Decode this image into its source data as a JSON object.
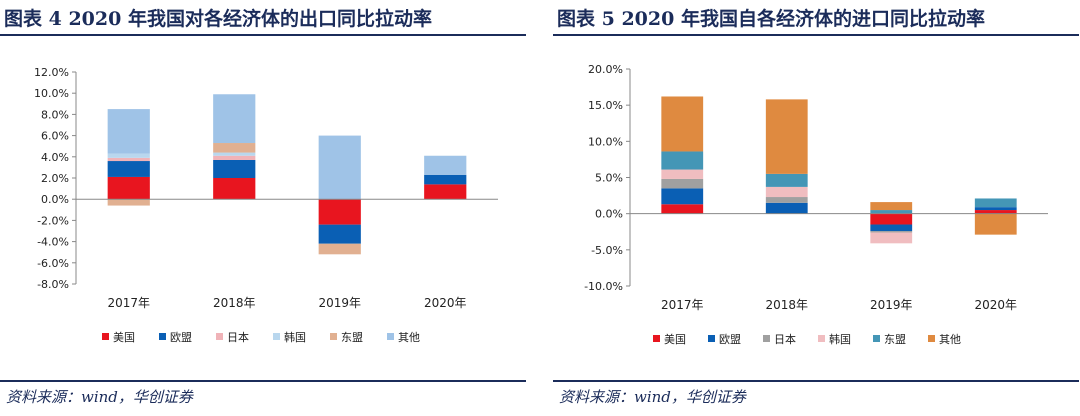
{
  "left": {
    "title": "图表 4   2020 年我国对各经济体的出口同比拉动率",
    "source": "资料来源：wind，华创证券"
  },
  "right": {
    "title": "图表 5   2020 年我国自各经济体的进口同比拉动率",
    "source": "资料来源：wind，华创证券"
  },
  "chart_data": [
    {
      "type": "bar",
      "stacked": true,
      "title": "",
      "categories": [
        "2017年",
        "2018年",
        "2019年",
        "2020年"
      ],
      "ylim": [
        -8.0,
        12.0
      ],
      "yticks": [
        12.0,
        10.0,
        8.0,
        6.0,
        4.0,
        2.0,
        0.0,
        -2.0,
        -4.0,
        -6.0,
        -8.0
      ],
      "ytick_labels": [
        "12.0%",
        "10.0%",
        "8.0%",
        "6.0%",
        "4.0%",
        "2.0%",
        "0.0%",
        "-2.0%",
        "-4.0%",
        "-6.0%",
        "-8.0%"
      ],
      "legend_position": "bottom",
      "grid": false,
      "series": [
        {
          "name": "美国",
          "color": "#e8151f",
          "values": [
            2.1,
            2.0,
            -2.4,
            1.4
          ]
        },
        {
          "name": "欧盟",
          "color": "#0a5fb4",
          "values": [
            1.5,
            1.7,
            -1.8,
            0.9
          ]
        },
        {
          "name": "日本",
          "color": "#f0b3b8",
          "values": [
            0.3,
            0.4,
            0.0,
            0.0
          ]
        },
        {
          "name": "韩国",
          "color": "#b9d7ee",
          "values": [
            0.4,
            0.3,
            0.0,
            0.0
          ]
        },
        {
          "name": "东盟",
          "color": "#e1b091",
          "values": [
            -0.6,
            0.9,
            -1.0,
            0.0
          ]
        },
        {
          "name": "其他",
          "color": "#9fc3e7",
          "values": [
            4.2,
            4.6,
            6.0,
            1.8
          ]
        }
      ]
    },
    {
      "type": "bar",
      "stacked": true,
      "title": "",
      "categories": [
        "2017年",
        "2018年",
        "2019年",
        "2020年"
      ],
      "ylim": [
        -10.0,
        20.0
      ],
      "yticks": [
        20.0,
        15.0,
        10.0,
        5.0,
        0.0,
        -5.0,
        -10.0
      ],
      "ytick_labels": [
        "20.0%",
        "15.0%",
        "10.0%",
        "5.0%",
        "0.0%",
        "-5.0%",
        "-10.0%"
      ],
      "legend_position": "bottom",
      "grid": false,
      "series": [
        {
          "name": "美国",
          "color": "#e8151f",
          "values": [
            1.3,
            0.0,
            -1.5,
            0.5
          ]
        },
        {
          "name": "欧盟",
          "color": "#0a5fb4",
          "values": [
            2.2,
            1.5,
            -0.9,
            0.4
          ]
        },
        {
          "name": "日本",
          "color": "#a0a0a0",
          "values": [
            1.3,
            0.8,
            -0.2,
            0.0
          ]
        },
        {
          "name": "韩国",
          "color": "#f0bdc0",
          "values": [
            1.3,
            1.4,
            -1.5,
            0.0
          ]
        },
        {
          "name": "东盟",
          "color": "#4496b6",
          "values": [
            2.5,
            1.8,
            0.5,
            1.2
          ]
        },
        {
          "name": "其他",
          "color": "#df8a40",
          "values": [
            7.6,
            10.3,
            1.1,
            -2.9
          ]
        }
      ]
    }
  ]
}
